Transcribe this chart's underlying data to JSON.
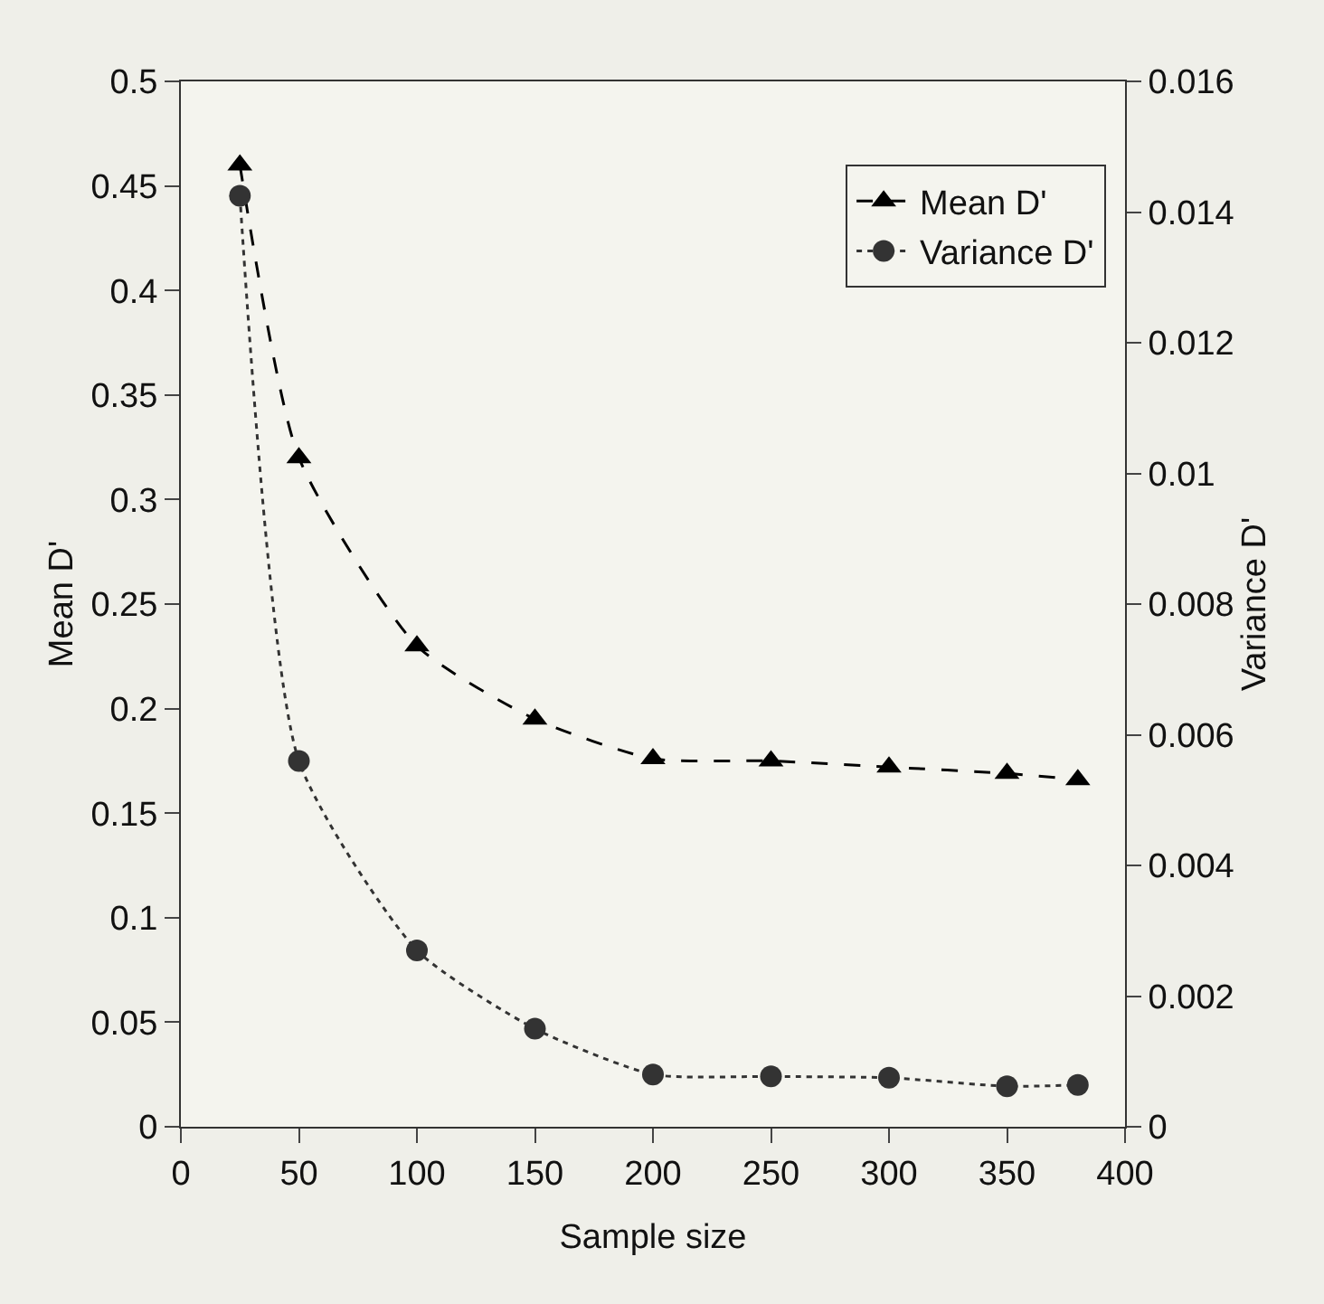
{
  "chart_data": {
    "type": "line",
    "xlabel": "Sample size",
    "ylabel": "Mean D'",
    "y2label": "Variance D'",
    "x": [
      25,
      50,
      100,
      150,
      200,
      250,
      300,
      350,
      380
    ],
    "series": [
      {
        "name": "Mean D'",
        "color": "#000000",
        "marker": "triangle",
        "line_style": "dashed",
        "values": [
          0.46,
          0.32,
          0.23,
          0.195,
          0.176,
          0.175,
          0.172,
          0.169,
          0.166
        ]
      },
      {
        "name": "Variance D'",
        "color": "#333333",
        "marker": "circle",
        "line_style": "dotted",
        "axis": "y2",
        "values": [
          0.01425,
          0.0056,
          0.0027,
          0.0015,
          0.0008,
          0.00077,
          0.00075,
          0.00062,
          0.00064
        ]
      }
    ],
    "xlim": [
      0,
      400
    ],
    "xticks": [
      0,
      50,
      100,
      150,
      200,
      250,
      300,
      350,
      400
    ],
    "ylim": [
      0,
      0.5
    ],
    "yticks": [
      0,
      0.05,
      0.1,
      0.15,
      0.2,
      0.25,
      0.3,
      0.35,
      0.4,
      0.45,
      0.5
    ],
    "y2lim": [
      0,
      0.016
    ],
    "y2ticks": [
      0,
      0.002,
      0.004,
      0.006,
      0.008,
      0.01,
      0.012,
      0.014,
      0.016
    ],
    "grid": false,
    "legend": "top right"
  }
}
